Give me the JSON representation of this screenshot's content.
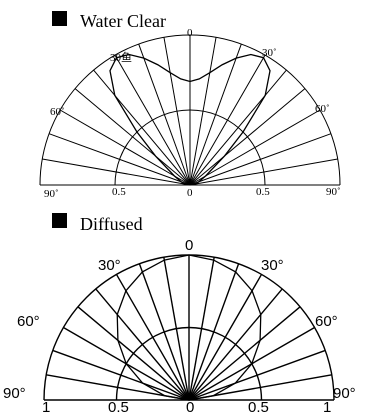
{
  "panels": [
    {
      "legend": {
        "label": "Water Clear",
        "swatch_color": "#000000"
      },
      "angle_labels": {
        "top": "0",
        "left30": "30鱼",
        "right30": "30˚",
        "left60": "60˚",
        "right60": "60˚",
        "left90": "90˚",
        "right90": "90˚"
      },
      "scale_labels": [
        "0.5",
        "0",
        "0.5"
      ],
      "pattern": [
        {
          "angle": -90,
          "r": 0.0
        },
        {
          "angle": -75,
          "r": 0.05
        },
        {
          "angle": -60,
          "r": 0.12
        },
        {
          "angle": -50,
          "r": 0.3
        },
        {
          "angle": -45,
          "r": 0.5
        },
        {
          "angle": -40,
          "r": 0.78
        },
        {
          "angle": -35,
          "r": 0.93
        },
        {
          "angle": -30,
          "r": 0.98
        },
        {
          "angle": -25,
          "r": 0.96
        },
        {
          "angle": -20,
          "r": 0.9
        },
        {
          "angle": -15,
          "r": 0.83
        },
        {
          "angle": -10,
          "r": 0.76
        },
        {
          "angle": -5,
          "r": 0.71
        },
        {
          "angle": 0,
          "r": 0.69
        },
        {
          "angle": 5,
          "r": 0.71
        },
        {
          "angle": 10,
          "r": 0.76
        },
        {
          "angle": 15,
          "r": 0.83
        },
        {
          "angle": 20,
          "r": 0.9
        },
        {
          "angle": 25,
          "r": 0.96
        },
        {
          "angle": 30,
          "r": 0.98
        },
        {
          "angle": 35,
          "r": 0.93
        },
        {
          "angle": 40,
          "r": 0.78
        },
        {
          "angle": 45,
          "r": 0.5
        },
        {
          "angle": 50,
          "r": 0.3
        },
        {
          "angle": 60,
          "r": 0.12
        },
        {
          "angle": 75,
          "r": 0.05
        },
        {
          "angle": 90,
          "r": 0.0
        }
      ]
    },
    {
      "legend": {
        "label": "Diffused",
        "swatch_color": "#000000"
      },
      "angle_labels": {
        "top": "0",
        "left30": "30°",
        "right30": "30°",
        "left60": "60°",
        "right60": "60°",
        "left90": "90°",
        "right90": "90°"
      },
      "scale_labels": [
        "1",
        "0.5",
        "0",
        "0.5",
        "1"
      ],
      "pattern": [
        {
          "angle": -90,
          "r": 0.0
        },
        {
          "angle": -80,
          "r": 0.17
        },
        {
          "angle": -70,
          "r": 0.34
        },
        {
          "angle": -60,
          "r": 0.5
        },
        {
          "angle": -50,
          "r": 0.64
        },
        {
          "angle": -40,
          "r": 0.77
        },
        {
          "angle": -30,
          "r": 0.87
        },
        {
          "angle": -20,
          "r": 0.94
        },
        {
          "angle": -10,
          "r": 0.98
        },
        {
          "angle": 0,
          "r": 1.0
        },
        {
          "angle": 10,
          "r": 0.98
        },
        {
          "angle": 20,
          "r": 0.94
        },
        {
          "angle": 30,
          "r": 0.87
        },
        {
          "angle": 40,
          "r": 0.77
        },
        {
          "angle": 50,
          "r": 0.64
        },
        {
          "angle": 60,
          "r": 0.5
        },
        {
          "angle": 70,
          "r": 0.34
        },
        {
          "angle": 80,
          "r": 0.17
        },
        {
          "angle": 90,
          "r": 0.0
        }
      ]
    }
  ]
}
